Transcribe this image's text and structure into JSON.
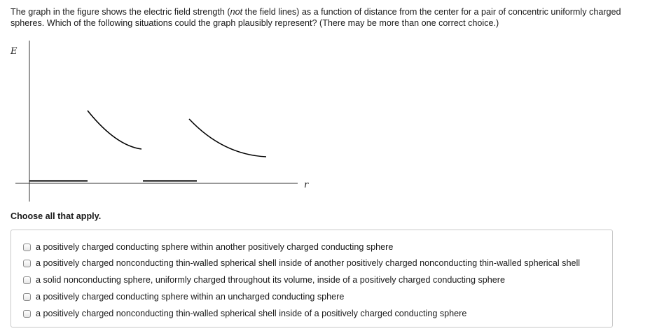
{
  "question": {
    "part1": "The graph in the figure shows the electric field strength (",
    "emphasis": "not",
    "part2": " the field lines) as a function of distance from the center for a pair of concentric uniformly charged spheres. Which of the following situations could the graph plausibly represent? (There may be more than one correct choice.)"
  },
  "graph": {
    "y_axis_label": "E",
    "x_axis_label": "r"
  },
  "instruction": "Choose all that apply.",
  "choices": [
    {
      "label": "a positively charged conducting sphere within another positively charged conducting sphere",
      "checked": false
    },
    {
      "label": "a positively charged nonconducting thin-walled spherical shell inside of another positively charged nonconducting thin-walled spherical shell",
      "checked": false
    },
    {
      "label": "a solid nonconducting sphere, uniformly charged throughout its volume, inside of a positively charged conducting sphere",
      "checked": false
    },
    {
      "label": "a positively charged conducting sphere within an uncharged conducting sphere",
      "checked": false
    },
    {
      "label": "a positively charged nonconducting thin-walled spherical shell inside of a positively charged conducting sphere",
      "checked": false
    }
  ]
}
